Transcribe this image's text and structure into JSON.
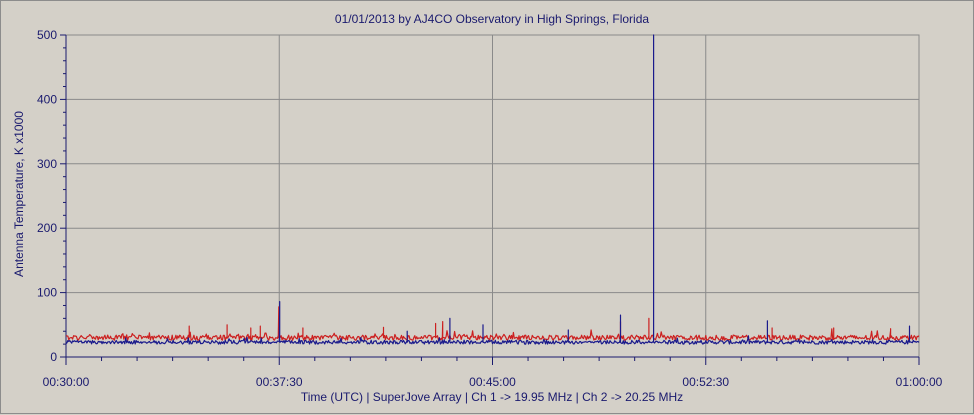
{
  "chart_data": {
    "type": "line",
    "title": "01/01/2013  by  AJ4CO Observatory  in  High Springs, Florida",
    "ylabel": "Antenna Temperature, K x1000",
    "xlabel": "Time (UTC)  |  SuperJove Array  |  Ch 1 -> 19.95 MHz  |  Ch 2 -> 20.25 MHz",
    "ylim": [
      0,
      500
    ],
    "xlim": [
      "00:30:00",
      "01:00:00"
    ],
    "y_ticks": [
      "500",
      "400",
      "300",
      "200",
      "100",
      "0"
    ],
    "x_ticks": [
      "00:30:00",
      "00:37:30",
      "00:45:00",
      "00:52:30",
      "01:00:00"
    ],
    "grid": true,
    "series": [
      {
        "name": "Ch 1 -> 19.95 MHz",
        "color": "#cc2020",
        "baseline": 30,
        "noise": 4,
        "spikes": [
          {
            "t": "00:37:29",
            "v": 78
          },
          {
            "t": "00:36:30",
            "v": 45
          },
          {
            "t": "00:36:50",
            "v": 48
          },
          {
            "t": "00:34:20",
            "v": 48
          },
          {
            "t": "00:35:40",
            "v": 50
          },
          {
            "t": "00:38:20",
            "v": 45
          },
          {
            "t": "00:41:10",
            "v": 46
          },
          {
            "t": "00:43:00",
            "v": 52
          },
          {
            "t": "00:43:15",
            "v": 55
          },
          {
            "t": "00:49:30",
            "v": 55
          },
          {
            "t": "00:50:30",
            "v": 60
          },
          {
            "t": "00:54:50",
            "v": 45
          },
          {
            "t": "00:57:00",
            "v": 45
          },
          {
            "t": "00:59:00",
            "v": 44
          }
        ]
      },
      {
        "name": "Ch 2 -> 20.25 MHz",
        "color": "#1a1a8c",
        "baseline": 23,
        "noise": 3,
        "spikes": [
          {
            "t": "00:50:40",
            "v": 500
          },
          {
            "t": "00:37:31",
            "v": 86
          },
          {
            "t": "00:49:30",
            "v": 65
          },
          {
            "t": "00:43:30",
            "v": 60
          },
          {
            "t": "00:54:40",
            "v": 56
          },
          {
            "t": "00:44:40",
            "v": 50
          },
          {
            "t": "00:59:40",
            "v": 48
          },
          {
            "t": "00:47:40",
            "v": 42
          },
          {
            "t": "00:42:00",
            "v": 40
          }
        ]
      }
    ]
  }
}
